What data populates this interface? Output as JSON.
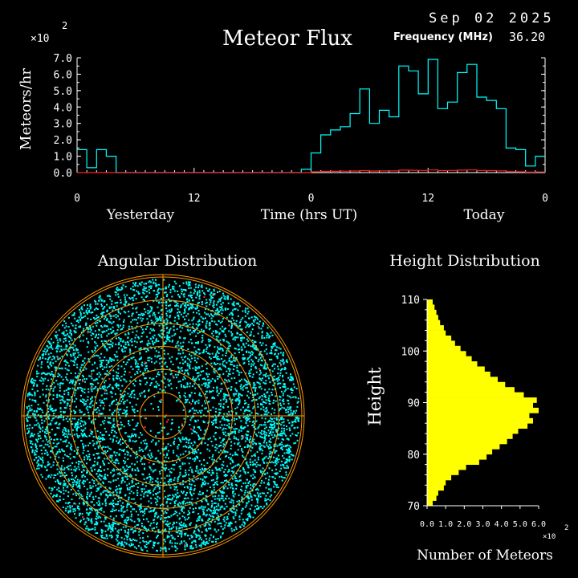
{
  "header": {
    "date": "Sep 02 2025",
    "frequency_label": "Frequency (MHz)",
    "frequency_value": "36.20"
  },
  "colors": {
    "background": "#000000",
    "flux_line": "#00ffff",
    "flux_secondary": "#ff2020",
    "angular_points": "#00ffff",
    "angular_red_points": "#ff3030",
    "angular_rings": "#ff9900",
    "angular_axes": "#ff9900",
    "height_bars": "#ffff00",
    "axis": "#ffffff"
  },
  "chart_data": [
    {
      "type": "line",
      "title": "Meteor Flux",
      "xlabel": "Time (hrs UT)",
      "ylabel": "Meteors/hr",
      "y_multiplier": "×10",
      "y_multiplier_exp": "2",
      "ylim": [
        0,
        7
      ],
      "yticks": [
        "0.0",
        "1.0",
        "2.0",
        "3.0",
        "4.0",
        "5.0",
        "6.0",
        "7.0"
      ],
      "xticks": [
        "0",
        "12",
        "0",
        "12",
        "0"
      ],
      "day_labels": [
        "Yesterday",
        "Today"
      ],
      "step": true,
      "series": [
        {
          "values": [
            1.4,
            0.3,
            1.4,
            1.0,
            0,
            0,
            0,
            0,
            0,
            0,
            0,
            0,
            0,
            0,
            0,
            0,
            0,
            0,
            0,
            0,
            0,
            0,
            0,
            0.2,
            1.2,
            2.3,
            2.6,
            2.8,
            3.6,
            5.1,
            3.0,
            3.8,
            3.4,
            6.5,
            6.2,
            4.8,
            6.9,
            3.9,
            4.3,
            6.1,
            6.6,
            4.6,
            4.4,
            3.9,
            1.5,
            1.4,
            0.4,
            1.0
          ],
          "color": "#00ffff"
        },
        {
          "values": [
            0,
            0,
            0,
            0,
            0,
            0,
            0,
            0,
            0,
            0,
            0,
            0,
            0,
            0,
            0,
            0,
            0,
            0,
            0,
            0,
            0,
            0,
            0,
            0,
            0.05,
            0.07,
            0.08,
            0.09,
            0.1,
            0.12,
            0.1,
            0.11,
            0.11,
            0.15,
            0.14,
            0.13,
            0.16,
            0.12,
            0.13,
            0.15,
            0.16,
            0.13,
            0.12,
            0.11,
            0.06,
            0.05,
            0.03,
            0.04
          ],
          "color": "#ff2020"
        }
      ]
    },
    {
      "type": "scatter",
      "title": "Angular Distribution",
      "rings": 6,
      "point_count": 6000,
      "red_point_count": 45
    },
    {
      "type": "bar",
      "orientation": "horizontal",
      "title": "Height Distribution",
      "ylabel": "Height",
      "xlabel": "Number of Meteors",
      "x_multiplier": "×10",
      "x_multiplier_exp": "2",
      "xlim": [
        0,
        6
      ],
      "xticks": [
        "0.0",
        "1.0",
        "2.0",
        "3.0",
        "4.0",
        "5.0",
        "6.0"
      ],
      "ylim": [
        70,
        110
      ],
      "yticks": [
        "70",
        "80",
        "90",
        "100",
        "110"
      ],
      "heights": [
        70.5,
        71.5,
        72.5,
        73.5,
        74.5,
        75.5,
        76.5,
        77.5,
        78.5,
        79.5,
        80.5,
        81.5,
        82.5,
        83.5,
        84.5,
        85.5,
        86.5,
        87.5,
        88.5,
        89.5,
        90.5,
        91.5,
        92.5,
        93.5,
        94.5,
        95.5,
        96.5,
        97.5,
        98.5,
        99.5,
        100.5,
        101.5,
        102.5,
        103.5,
        104.5,
        105.5,
        106.5,
        107.5,
        108.5,
        109.5
      ],
      "values": [
        0.3,
        0.5,
        0.6,
        0.9,
        1.0,
        1.3,
        1.7,
        2.1,
        2.8,
        3.2,
        3.5,
        3.9,
        4.3,
        4.6,
        4.9,
        5.4,
        5.7,
        5.5,
        6.0,
        5.7,
        5.9,
        5.2,
        4.7,
        4.2,
        3.8,
        3.4,
        3.1,
        2.7,
        2.4,
        2.1,
        1.8,
        1.5,
        1.3,
        1.0,
        0.9,
        0.7,
        0.6,
        0.5,
        0.4,
        0.3
      ]
    }
  ]
}
